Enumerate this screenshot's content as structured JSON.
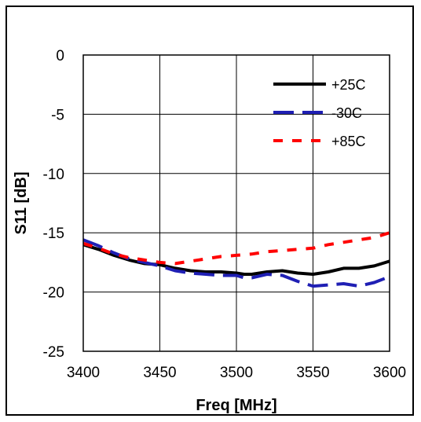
{
  "chart_data": {
    "type": "line",
    "title": "",
    "xlabel": "Freq [MHz]",
    "ylabel": "S11 [dB]",
    "xlim": [
      3400,
      3600
    ],
    "ylim": [
      -25,
      0
    ],
    "x_ticks": [
      "3400",
      "3450",
      "3500",
      "3550",
      "3600"
    ],
    "y_ticks": [
      "0",
      "-5",
      "-10",
      "-15",
      "-20",
      "-25"
    ],
    "grid": true,
    "legend_position": "top-right",
    "series": [
      {
        "name": "+25C",
        "color": "#000000",
        "dash": "solid",
        "x": [
          3400,
          3410,
          3420,
          3430,
          3440,
          3450,
          3460,
          3470,
          3480,
          3490,
          3500,
          3505,
          3510,
          3520,
          3530,
          3540,
          3550,
          3560,
          3570,
          3580,
          3590,
          3600
        ],
        "y": [
          -16.0,
          -16.4,
          -16.9,
          -17.3,
          -17.6,
          -17.7,
          -18.0,
          -18.2,
          -18.3,
          -18.3,
          -18.4,
          -18.5,
          -18.5,
          -18.3,
          -18.2,
          -18.4,
          -18.5,
          -18.3,
          -18.0,
          -18.0,
          -17.8,
          -17.4
        ]
      },
      {
        "name": "-30C",
        "color": "#1f1fb4",
        "dash": "long",
        "x": [
          3400,
          3410,
          3420,
          3430,
          3440,
          3450,
          3460,
          3470,
          3480,
          3490,
          3500,
          3505,
          3510,
          3520,
          3530,
          3540,
          3550,
          3560,
          3570,
          3580,
          3590,
          3600
        ],
        "y": [
          -15.6,
          -16.1,
          -16.7,
          -17.2,
          -17.5,
          -17.8,
          -18.2,
          -18.4,
          -18.5,
          -18.6,
          -18.6,
          -18.8,
          -18.8,
          -18.5,
          -18.6,
          -19.1,
          -19.5,
          -19.4,
          -19.3,
          -19.5,
          -19.2,
          -18.7
        ]
      },
      {
        "name": "+85C",
        "color": "#ff0000",
        "dash": "short",
        "x": [
          3400,
          3410,
          3420,
          3430,
          3440,
          3450,
          3460,
          3470,
          3480,
          3490,
          3500,
          3510,
          3520,
          3530,
          3540,
          3550,
          3560,
          3570,
          3580,
          3590,
          3600
        ],
        "y": [
          -15.9,
          -16.3,
          -16.8,
          -17.1,
          -17.3,
          -17.5,
          -17.6,
          -17.4,
          -17.2,
          -17.0,
          -16.9,
          -16.8,
          -16.6,
          -16.5,
          -16.4,
          -16.3,
          -16.0,
          -15.8,
          -15.6,
          -15.4,
          -15.0
        ]
      }
    ]
  }
}
